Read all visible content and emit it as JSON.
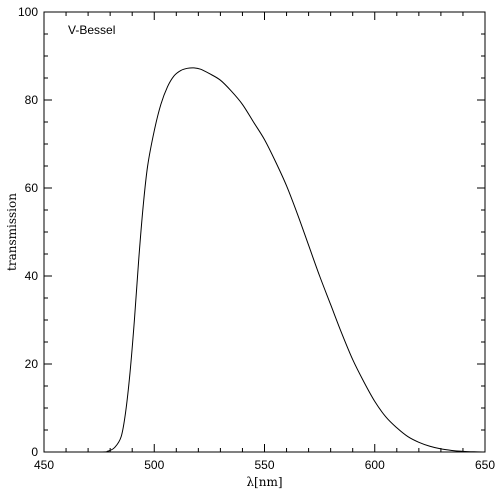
{
  "chart_data": {
    "type": "line",
    "title": "",
    "xlabel": "λ[nm]",
    "ylabel": "transmission",
    "xlim": [
      450,
      650
    ],
    "ylim": [
      0,
      100
    ],
    "xticks": [
      450,
      500,
      550,
      600,
      650
    ],
    "yticks": [
      0,
      20,
      40,
      60,
      80,
      100
    ],
    "grid": false,
    "annotation": "V-Bessel",
    "series": [
      {
        "x": [
          450,
          475,
          479,
          482,
          485,
          487,
          489,
          491,
          493,
          495,
          497,
          500,
          503,
          506,
          509,
          512,
          515,
          518,
          521,
          525,
          530,
          535,
          540,
          545,
          550,
          555,
          560,
          565,
          570,
          575,
          580,
          585,
          590,
          595,
          600,
          605,
          610,
          615,
          620,
          625,
          630,
          635,
          640,
          645,
          650
        ],
        "y": [
          0,
          0,
          0.2,
          1.0,
          3.5,
          9.0,
          18.0,
          30.0,
          44.0,
          56.0,
          65.0,
          73.0,
          79.0,
          83.0,
          85.5,
          86.7,
          87.2,
          87.3,
          87.0,
          86.0,
          84.5,
          82.0,
          79.0,
          75.0,
          71.0,
          66.0,
          60.5,
          54.0,
          47.0,
          40.0,
          33.5,
          27.0,
          21.0,
          16.0,
          11.5,
          8.0,
          5.5,
          3.5,
          2.2,
          1.3,
          0.7,
          0.35,
          0.15,
          0.05,
          0
        ]
      }
    ]
  }
}
